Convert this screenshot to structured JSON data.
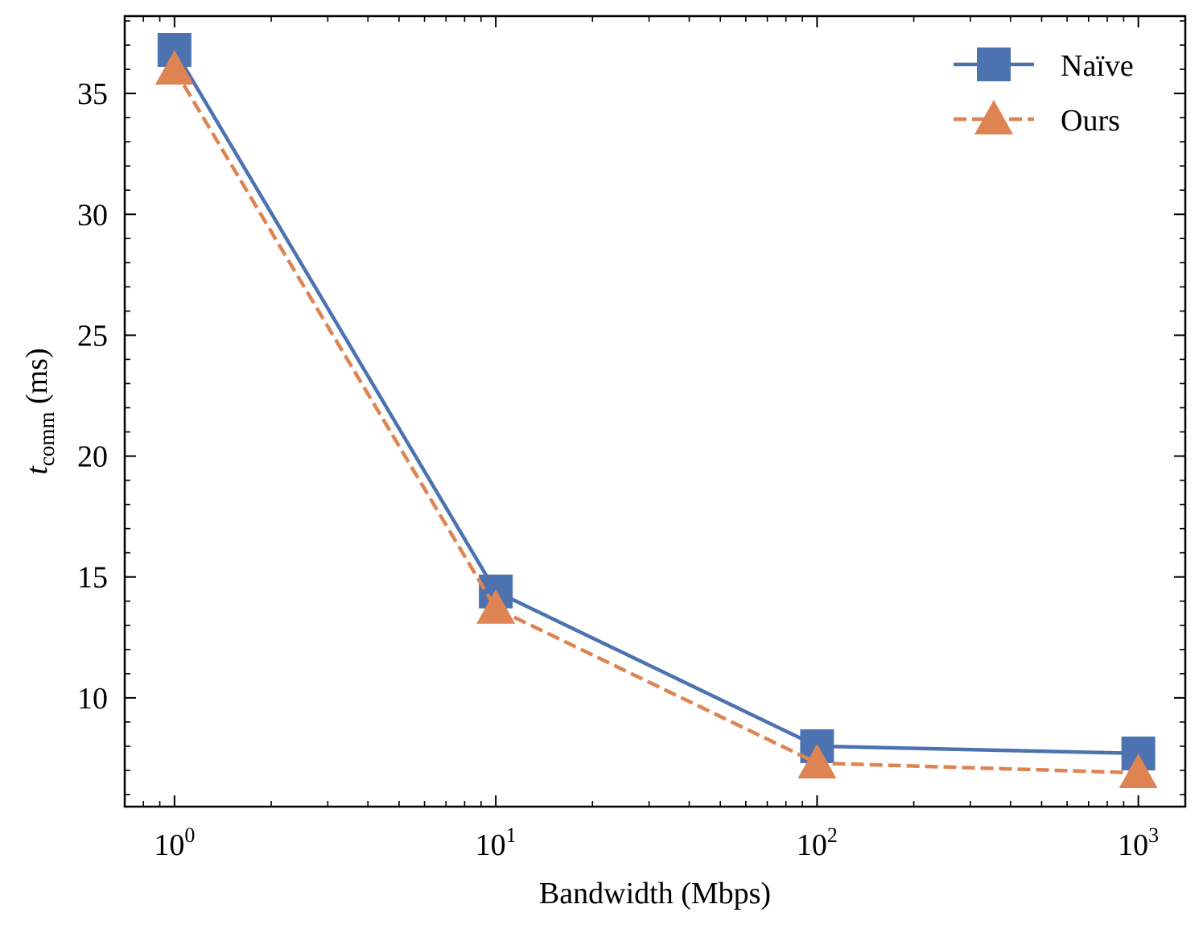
{
  "chart_data": {
    "type": "line",
    "title": "",
    "xlabel": "Bandwidth (Mbps)",
    "ylabel": {
      "base": "t",
      "subscript": "comm",
      "unit": "(ms)"
    },
    "xscale": "log",
    "xlim": [
      0.7,
      1400
    ],
    "ylim": [
      5.5,
      38.2
    ],
    "x": [
      1,
      10,
      100,
      1000
    ],
    "xticks": [
      {
        "value": 1,
        "base": "10",
        "exp": "0"
      },
      {
        "value": 10,
        "base": "10",
        "exp": "1"
      },
      {
        "value": 100,
        "base": "10",
        "exp": "2"
      },
      {
        "value": 1000,
        "base": "10",
        "exp": "3"
      }
    ],
    "yticks": [
      {
        "value": 10,
        "label": "10"
      },
      {
        "value": 15,
        "label": "15"
      },
      {
        "value": 20,
        "label": "20"
      },
      {
        "value": 25,
        "label": "25"
      },
      {
        "value": 30,
        "label": "30"
      },
      {
        "value": 35,
        "label": "35"
      }
    ],
    "series": [
      {
        "name": "Naïve",
        "values": [
          36.8,
          14.4,
          8.0,
          7.7
        ],
        "color": "#4c72b0",
        "marker": "square",
        "linestyle": "solid"
      },
      {
        "name": "Ours",
        "values": [
          36.0,
          13.7,
          7.3,
          6.9
        ],
        "color": "#dd8452",
        "marker": "triangle",
        "linestyle": "dashed"
      }
    ],
    "legend_position": "top-right",
    "grid": false
  }
}
